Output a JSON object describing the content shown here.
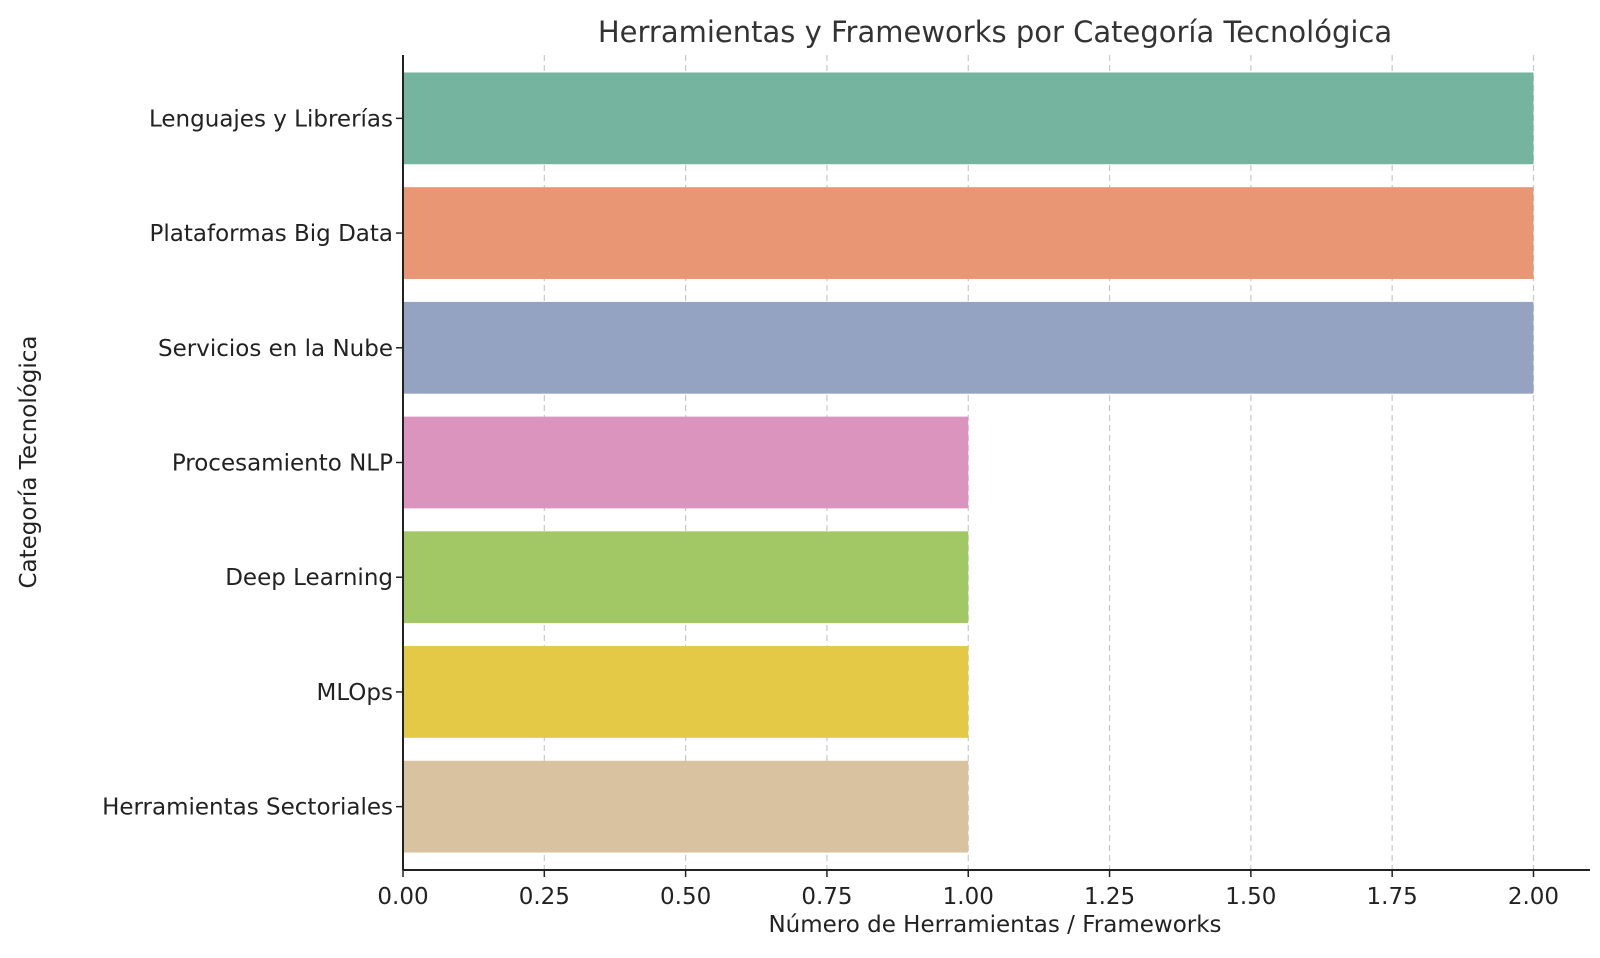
{
  "chart_data": {
    "type": "bar",
    "orientation": "horizontal",
    "title": "Herramientas y Frameworks por Categoría Tecnológica",
    "xlabel": "Número de Herramientas / Frameworks",
    "ylabel": "Categoría Tecnológica",
    "xlim": [
      0,
      2.1
    ],
    "xticks": [
      "0.00",
      "0.25",
      "0.50",
      "0.75",
      "1.00",
      "1.25",
      "1.50",
      "1.75",
      "2.00"
    ],
    "grid": "x-dashed",
    "legend": "none",
    "categories": [
      "Lenguajes y Librerías",
      "Plataformas Big Data",
      "Servicios en la Nube",
      "Procesamiento NLP",
      "Deep Learning",
      "MLOps",
      "Herramientas Sectoriales"
    ],
    "values": [
      2,
      2,
      2,
      1,
      1,
      1,
      1
    ],
    "colors": [
      "#75b5a0",
      "#e99675",
      "#94a3c2",
      "#db94be",
      "#a2c866",
      "#e3c946",
      "#d9c29f"
    ]
  }
}
